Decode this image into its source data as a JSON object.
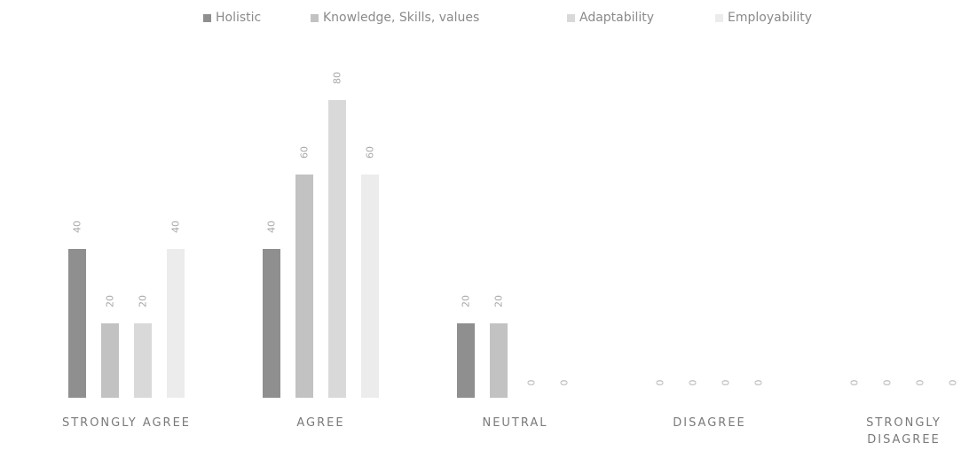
{
  "chart_data": {
    "type": "bar",
    "categories": [
      "STRONGLY AGREE",
      "AGREE",
      "NEUTRAL",
      "DISAGREE",
      "STRONGLY DISAGREE"
    ],
    "category_lines": [
      [
        "STRONGLY AGREE"
      ],
      [
        "AGREE"
      ],
      [
        "NEUTRAL"
      ],
      [
        "DISAGREE"
      ],
      [
        "STRONGLY",
        "DISAGREE"
      ]
    ],
    "series": [
      {
        "name": "Holistic",
        "values": [
          40,
          40,
          20,
          0,
          0
        ],
        "color": "#8f8f8f"
      },
      {
        "name": "Knowledge, Skills, values",
        "values": [
          20,
          60,
          20,
          0,
          0
        ],
        "color": "#c2c2c2"
      },
      {
        "name": "Adaptability",
        "values": [
          20,
          80,
          0,
          0,
          0
        ],
        "color": "#d9d9d9"
      },
      {
        "name": "Employability",
        "values": [
          40,
          60,
          0,
          0,
          0
        ],
        "color": "#ececec"
      }
    ],
    "ylim": [
      0,
      80
    ],
    "grid": false,
    "legend_position": "top",
    "data_labels": true,
    "title": "",
    "xlabel": "",
    "ylabel": ""
  }
}
